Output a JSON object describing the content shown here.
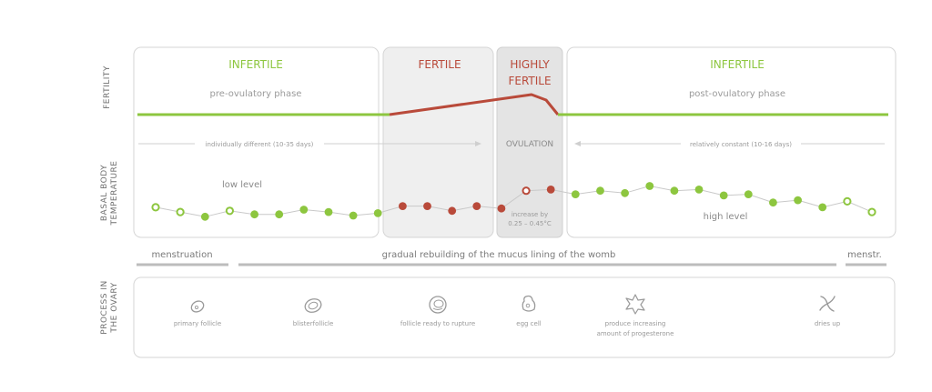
{
  "colors": {
    "green": "#8dc63f",
    "green_stroke": "#7ab534",
    "red": "#b94a3a",
    "fertile_bg": "#efefef",
    "highly_bg": "#e4e4e4",
    "box_border": "#d6d6d6",
    "gray_text": "#9a9a9a",
    "dark_text": "#6f6f6f",
    "bar_gray": "#bdbdbd"
  },
  "row_labels": {
    "fertility": "FERTILITY",
    "bbt_line1": "BASAL BODY",
    "bbt_line2": "TEMPERATURE",
    "process_line1": "PROCESS IN",
    "process_line2": "THE OVARY"
  },
  "phases": {
    "infertile_pre": {
      "title": "INFERTILE",
      "subtitle": "pre-ovulatory phase"
    },
    "fertile": {
      "title": "FERTILE"
    },
    "highly_fertile": {
      "title_line1": "HIGHLY",
      "title_line2": "FERTILE"
    },
    "infertile_post": {
      "title": "INFERTILE",
      "subtitle": "post-ovulatory phase"
    }
  },
  "durations": {
    "pre": "individually different (10-35 days)",
    "ovulation": "OVULATION",
    "post": "relatively constant (10-16 days)"
  },
  "temperature": {
    "low_label": "low level",
    "high_label": "high level",
    "increase_line1": "increase by",
    "increase_line2": "0.25 – 0.45°C",
    "points": [
      {
        "level": 0.34,
        "type": "hollow-green"
      },
      {
        "level": 0.26,
        "type": "hollow-green"
      },
      {
        "level": 0.18,
        "type": "filled-green"
      },
      {
        "level": 0.28,
        "type": "hollow-green"
      },
      {
        "level": 0.22,
        "type": "filled-green"
      },
      {
        "level": 0.22,
        "type": "filled-green"
      },
      {
        "level": 0.3,
        "type": "filled-green"
      },
      {
        "level": 0.26,
        "type": "filled-green"
      },
      {
        "level": 0.2,
        "type": "filled-green"
      },
      {
        "level": 0.24,
        "type": "filled-green"
      },
      {
        "level": 0.36,
        "type": "filled-red"
      },
      {
        "level": 0.36,
        "type": "filled-red"
      },
      {
        "level": 0.28,
        "type": "filled-red"
      },
      {
        "level": 0.36,
        "type": "filled-red"
      },
      {
        "level": 0.32,
        "type": "filled-red"
      },
      {
        "level": 0.62,
        "type": "hollow-red"
      },
      {
        "level": 0.64,
        "type": "filled-red"
      },
      {
        "level": 0.56,
        "type": "filled-green"
      },
      {
        "level": 0.62,
        "type": "filled-green"
      },
      {
        "level": 0.58,
        "type": "filled-green"
      },
      {
        "level": 0.7,
        "type": "filled-green"
      },
      {
        "level": 0.62,
        "type": "filled-green"
      },
      {
        "level": 0.64,
        "type": "filled-green"
      },
      {
        "level": 0.54,
        "type": "filled-green"
      },
      {
        "level": 0.56,
        "type": "filled-green"
      },
      {
        "level": 0.42,
        "type": "filled-green"
      },
      {
        "level": 0.46,
        "type": "filled-green"
      },
      {
        "level": 0.34,
        "type": "filled-green"
      },
      {
        "level": 0.44,
        "type": "hollow-green"
      },
      {
        "level": 0.26,
        "type": "hollow-green"
      }
    ]
  },
  "mucus": {
    "menstruation": "menstruation",
    "rebuilding": "gradual rebuilding of the mucus lining of the womb",
    "menstr": "menstr."
  },
  "ovary": [
    {
      "label": "primary follicle",
      "icon": "primary-follicle-icon"
    },
    {
      "label": "blisterfollicle",
      "icon": "blister-follicle-icon"
    },
    {
      "label": "follicle ready to rupture",
      "icon": "follicle-rupture-icon"
    },
    {
      "label": "egg cell",
      "icon": "egg-cell-icon"
    },
    {
      "label_line1": "produce increasing",
      "label_line2": "amount of progesterone",
      "icon": "corpus-luteum-icon"
    },
    {
      "label": "dries up",
      "icon": "dries-up-icon"
    }
  ]
}
